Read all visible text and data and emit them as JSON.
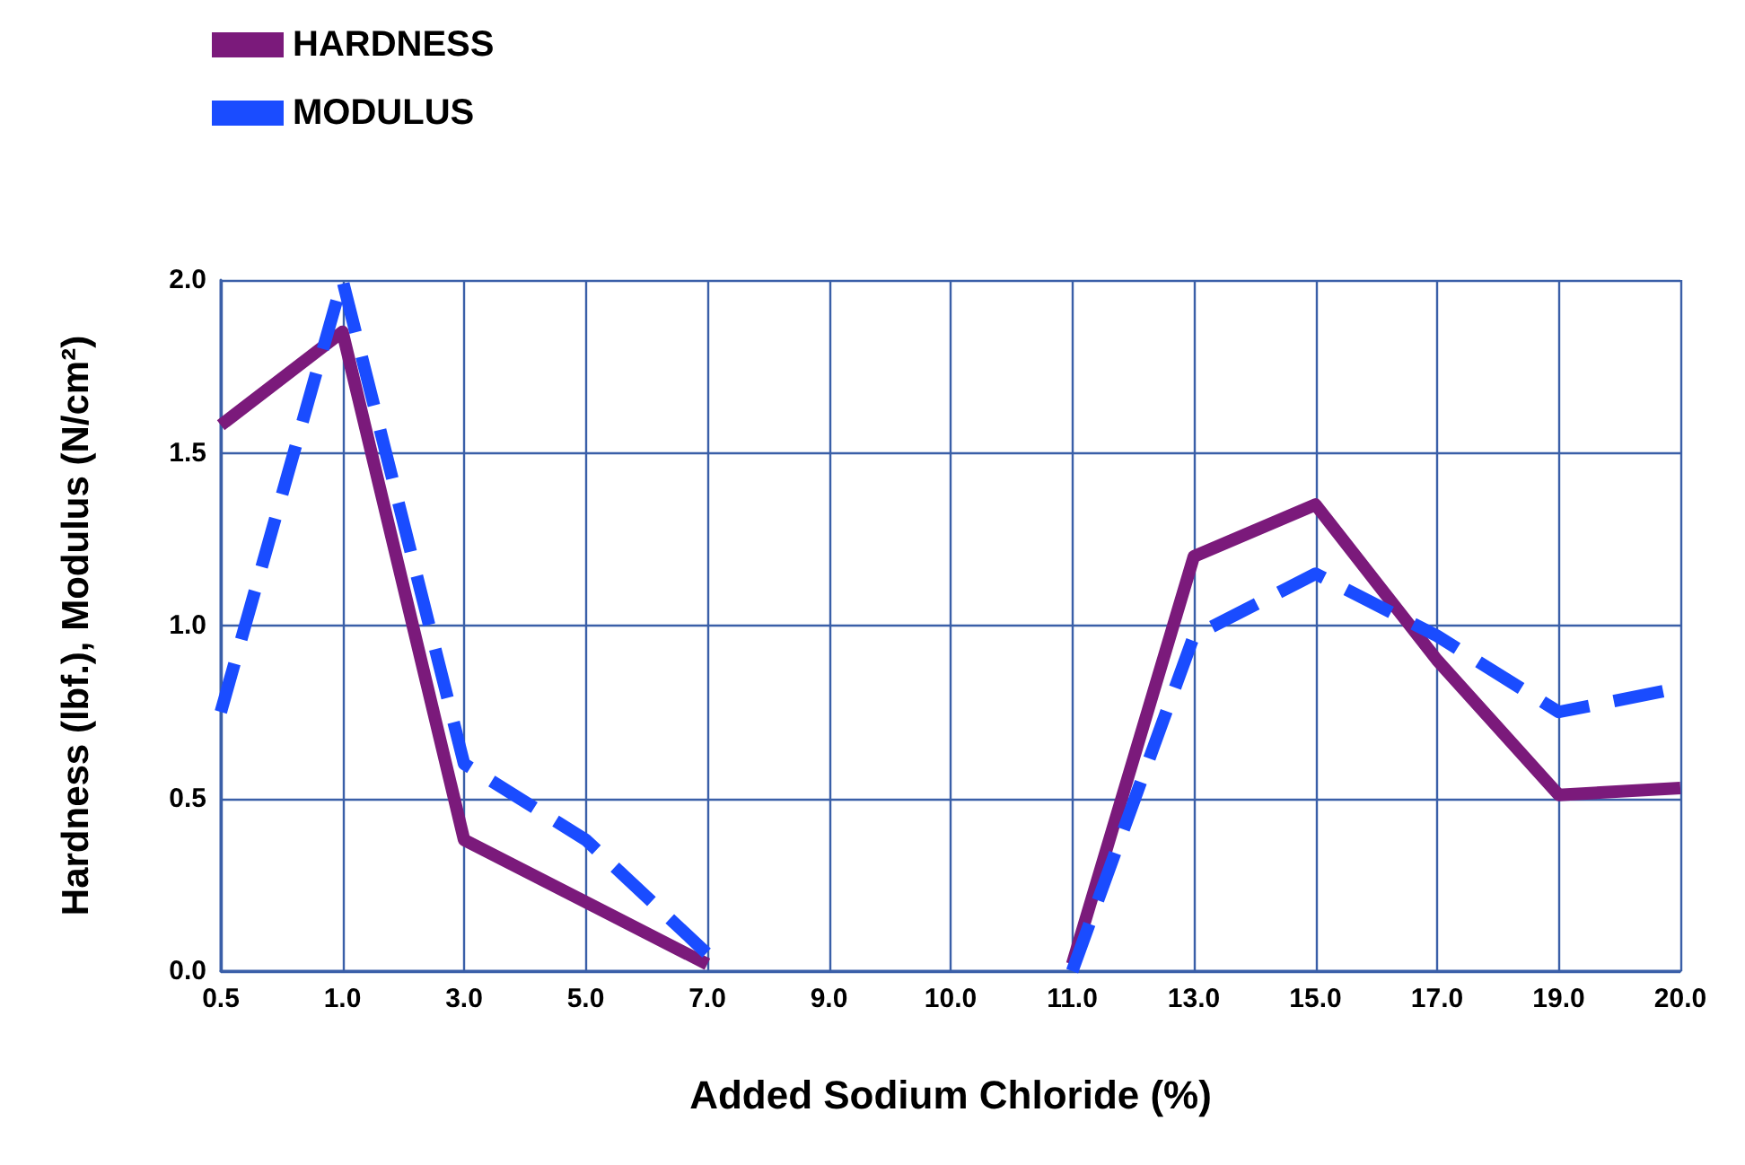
{
  "chart_data": {
    "type": "line",
    "xlabel": "Added Sodium Chloride (%)",
    "ylabel": "Hardness (lbf.), Modulus (N/cm²)",
    "categories": [
      "0.5",
      "1.0",
      "3.0",
      "5.0",
      "7.0",
      "9.0",
      "10.0",
      "11.0",
      "13.0",
      "15.0",
      "17.0",
      "19.0",
      "20.0"
    ],
    "series": [
      {
        "name": "HARDNESS",
        "color": "#7b1a7b",
        "line_style": "solid",
        "values": [
          1.58,
          1.85,
          0.38,
          0.2,
          0.02,
          null,
          null,
          0.02,
          1.2,
          1.35,
          0.9,
          0.51,
          0.53
        ]
      },
      {
        "name": "MODULUS",
        "color": "#1a4cff",
        "line_style": "dashed",
        "values": [
          0.75,
          2.0,
          0.6,
          0.38,
          0.05,
          null,
          null,
          0.0,
          0.97,
          1.15,
          0.97,
          0.75,
          0.82
        ]
      }
    ],
    "ylim": [
      0,
      2
    ],
    "yticks": [
      {
        "value": 0,
        "label": "0.0"
      },
      {
        "value": 0.5,
        "label": "0.5"
      },
      {
        "value": 1,
        "label": "1.0"
      },
      {
        "value": 1.5,
        "label": "1.5"
      },
      {
        "value": 2,
        "label": "2.0"
      }
    ],
    "grid": true,
    "legend": "top left",
    "marker": "none"
  }
}
